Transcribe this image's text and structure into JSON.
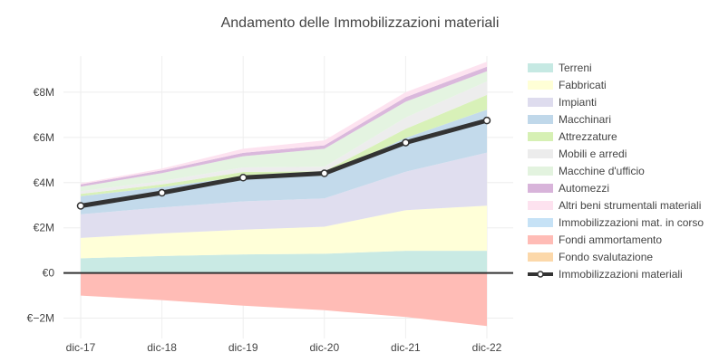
{
  "chart_data": {
    "type": "area",
    "title": "Andamento delle Immobilizzazioni materiali",
    "categories": [
      "dic-17",
      "dic-18",
      "dic-19",
      "dic-20",
      "dic-21",
      "dic-22"
    ],
    "ylim": [
      -2.9,
      9.6
    ],
    "yticks": [
      -2,
      0,
      2,
      4,
      6,
      8
    ],
    "ytick_labels": [
      "€−2M",
      "€0",
      "€2M",
      "€4M",
      "€6M",
      "€8M"
    ],
    "grid": true,
    "legend_position": "right",
    "positive_series": [
      {
        "name": "Terreni",
        "color": "#c6e9e3",
        "values": [
          0.65,
          0.75,
          0.82,
          0.85,
          0.98,
          0.98
        ]
      },
      {
        "name": "Fabbricati",
        "color": "#ffffd6",
        "values": [
          0.9,
          1.0,
          1.1,
          1.2,
          1.8,
          2.0
        ]
      },
      {
        "name": "Impianti",
        "color": "#dedcee",
        "values": [
          1.05,
          1.15,
          1.25,
          1.25,
          1.7,
          2.35
        ]
      },
      {
        "name": "Macchinari",
        "color": "#c0d8ea",
        "values": [
          0.8,
          0.9,
          1.1,
          1.0,
          1.5,
          1.9
        ]
      },
      {
        "name": "Attrezzature",
        "color": "#d6f0b4",
        "values": [
          0.1,
          0.12,
          0.2,
          0.2,
          0.4,
          0.65
        ]
      },
      {
        "name": "Mobili e arredi",
        "color": "#ececec",
        "values": [
          0.12,
          0.15,
          0.2,
          0.2,
          0.5,
          0.6
        ]
      },
      {
        "name": "Macchine d'ufficio",
        "color": "#e3f3df",
        "values": [
          0.2,
          0.35,
          0.5,
          0.8,
          0.7,
          0.45
        ]
      },
      {
        "name": "Automezzi",
        "color": "#d8b4da",
        "values": [
          0.1,
          0.12,
          0.15,
          0.15,
          0.2,
          0.2
        ]
      },
      {
        "name": "Altri beni strumentali materiali",
        "color": "#fde2ef",
        "values": [
          0.05,
          0.08,
          0.18,
          0.22,
          0.22,
          0.22
        ]
      },
      {
        "name": "Immobilizzazioni mat. in corso",
        "color": "#c6e2f6",
        "values": [
          0,
          0,
          0,
          0,
          0,
          0
        ]
      }
    ],
    "negative_series": [
      {
        "name": "Fondi ammortamento",
        "color": "#ffbcb6",
        "values": [
          -1.0,
          -1.2,
          -1.45,
          -1.65,
          -1.95,
          -2.35
        ]
      },
      {
        "name": "Fondo svalutazione",
        "color": "#fcd8aa",
        "values": [
          0,
          0,
          0,
          0,
          0,
          0
        ]
      }
    ],
    "line_series": {
      "name": "Immobilizzazioni materiali",
      "color": "#333333",
      "values": [
        2.97,
        3.55,
        4.22,
        4.41,
        5.77,
        6.75
      ]
    },
    "zero_line_color": "#333333"
  }
}
